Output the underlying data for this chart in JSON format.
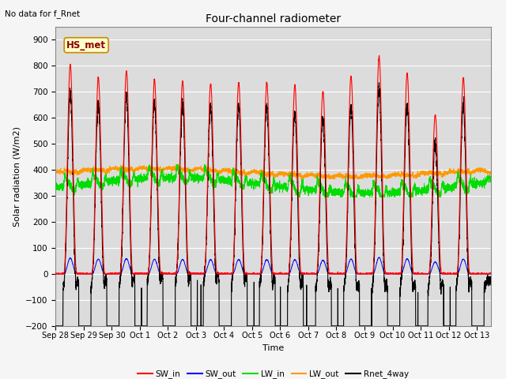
{
  "title": "Four-channel radiometer",
  "top_left_text": "No data for f_Rnet",
  "xlabel": "Time",
  "ylabel": "Solar radiation (W/m2)",
  "ylim": [
    -200,
    950
  ],
  "yticks": [
    -200,
    -100,
    0,
    100,
    200,
    300,
    400,
    500,
    600,
    700,
    800,
    900
  ],
  "colors": {
    "SW_in": "#ff0000",
    "SW_out": "#0000ff",
    "LW_in": "#00dd00",
    "LW_out": "#ff9900",
    "Rnet_4way": "#000000"
  },
  "legend_label": "HS_met",
  "n_days": 15.5,
  "plot_bg": "#dcdcdc",
  "fig_bg": "#f5f5f5",
  "sw_in_peaks": [
    805,
    755,
    780,
    745,
    740,
    730,
    735,
    735,
    725,
    700,
    760,
    835,
    770,
    610,
    755
  ],
  "xtick_labels": [
    "Sep 28",
    "Sep 29",
    "Sep 30",
    "Oct 1",
    "Oct 2",
    "Oct 3",
    "Oct 4",
    "Oct 5",
    "Oct 6",
    "Oct 7",
    "Oct 8",
    "Oct 9",
    "Oct 10",
    "Oct 11",
    "Oct 12",
    "Oct 13"
  ]
}
